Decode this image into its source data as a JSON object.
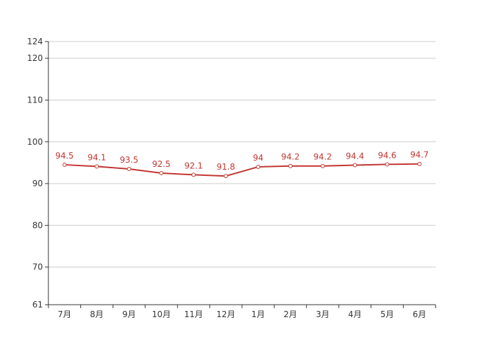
{
  "chart_data": {
    "type": "line",
    "categories": [
      "7月",
      "8月",
      "9月",
      "10月",
      "11月",
      "12月",
      "1月",
      "2月",
      "3月",
      "4月",
      "5月",
      "6月"
    ],
    "series": [
      {
        "values": [
          94.5,
          94.1,
          93.5,
          92.5,
          92.1,
          91.8,
          94,
          94.2,
          94.2,
          94.4,
          94.6,
          94.7
        ],
        "color": "#c23531"
      }
    ],
    "ylim": [
      61,
      124
    ],
    "yticks": [
      61,
      70,
      80,
      90,
      100,
      110,
      120,
      124
    ],
    "grid": true,
    "data_labels": true,
    "title": "",
    "xlabel": "",
    "ylabel": ""
  }
}
